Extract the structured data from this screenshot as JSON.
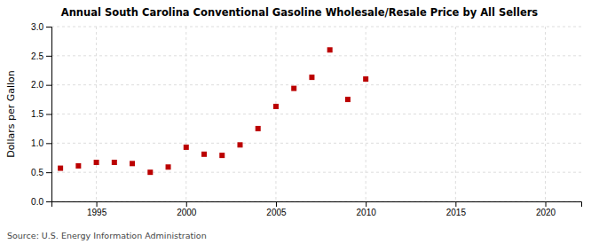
{
  "chart_data": {
    "type": "scatter",
    "title": "Annual South Carolina Conventional Gasoline Wholesale/Resale Price by All Sellers",
    "ylabel": "Dollars per Gallon",
    "annotations": [
      "Source: U.S. Energy Information Administration"
    ],
    "x": [
      1993,
      1994,
      1995,
      1996,
      1997,
      1998,
      1999,
      2000,
      2001,
      2002,
      2003,
      2004,
      2005,
      2006,
      2007,
      2008,
      2009,
      2010
    ],
    "values": [
      0.57,
      0.61,
      0.67,
      0.67,
      0.65,
      0.5,
      0.59,
      0.93,
      0.81,
      0.79,
      0.97,
      1.25,
      1.63,
      1.94,
      2.13,
      2.6,
      1.75,
      2.1
    ],
    "color": "#bb0000",
    "marker": "square",
    "xlim": [
      1992.5,
      2022
    ],
    "ylim": [
      0.0,
      3.0
    ],
    "xticks": [
      1995,
      2000,
      2005,
      2010,
      2015,
      2020
    ],
    "yticks": [
      {
        "value": 0.0,
        "label": "0.0"
      },
      0.5,
      {
        "value": 1.0,
        "label": "1.0"
      },
      1.5,
      {
        "value": 2.0,
        "label": "2.0"
      },
      2.5,
      {
        "value": 3.0,
        "label": "3.0"
      }
    ],
    "grid": true
  }
}
